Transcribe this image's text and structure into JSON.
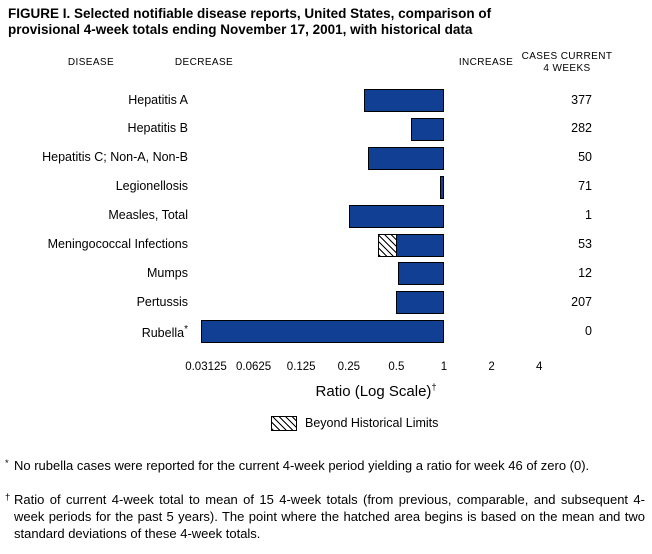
{
  "title": {
    "line1": "FIGURE I. Selected notifiable disease reports, United States, comparison of",
    "line2": "provisional 4-week totals ending November 17, 2001, with historical data"
  },
  "headers": {
    "disease": "DISEASE",
    "decrease": "DECREASE",
    "increase": "INCREASE",
    "cases_line1": "CASES CURRENT",
    "cases_line2": "4 WEEKS"
  },
  "chart_data": {
    "type": "bar",
    "orientation": "horizontal",
    "scale": "log2",
    "baseline": 1,
    "bar_color": "#113f94",
    "axis": {
      "label": "Ratio (Log Scale)",
      "label_sup": "†",
      "min": 0.03125,
      "max": 4,
      "ticks": [
        0.03125,
        0.0625,
        0.125,
        0.25,
        0.5,
        1,
        2,
        4
      ],
      "tick_labels": [
        "0.03125",
        "0.0625",
        "0.125",
        "0.25",
        "0.5",
        "1",
        "2",
        "4"
      ]
    },
    "rows": [
      {
        "disease": "Hepatitis A",
        "cases": "377",
        "ratio": 0.31
      },
      {
        "disease": "Hepatitis B",
        "cases": "282",
        "ratio": 0.62
      },
      {
        "disease": "Hepatitis C; Non-A, Non-B",
        "cases": "50",
        "ratio": 0.33
      },
      {
        "disease": "Legionellosis",
        "cases": "71",
        "ratio": 0.95
      },
      {
        "disease": "Measles, Total",
        "cases": "1",
        "ratio": 0.25
      },
      {
        "disease": "Meningococcal Infections",
        "cases": "53",
        "ratio": 0.385,
        "hatch_to": 0.5,
        "beyond_historical_limits": true
      },
      {
        "disease": "Mumps",
        "cases": "12",
        "ratio": 0.51
      },
      {
        "disease": "Pertussis",
        "cases": "207",
        "ratio": 0.5
      },
      {
        "disease": "Rubella",
        "sup": "*",
        "cases": "0",
        "ratio": 0.029
      }
    ],
    "legend": {
      "swatch": "hatched",
      "label": "Beyond Historical Limits"
    }
  },
  "footnotes": [
    {
      "marker": "*",
      "text": "No rubella cases were reported for the current 4-week period yielding a ratio for week 46 of zero (0)."
    },
    {
      "marker": "†",
      "text": "Ratio of current 4-week total to mean of 15 4-week totals (from previous, comparable, and subsequent 4-week periods for the past 5 years). The point where the hatched area begins is based on the mean and two standard deviations of these 4-week totals."
    }
  ]
}
